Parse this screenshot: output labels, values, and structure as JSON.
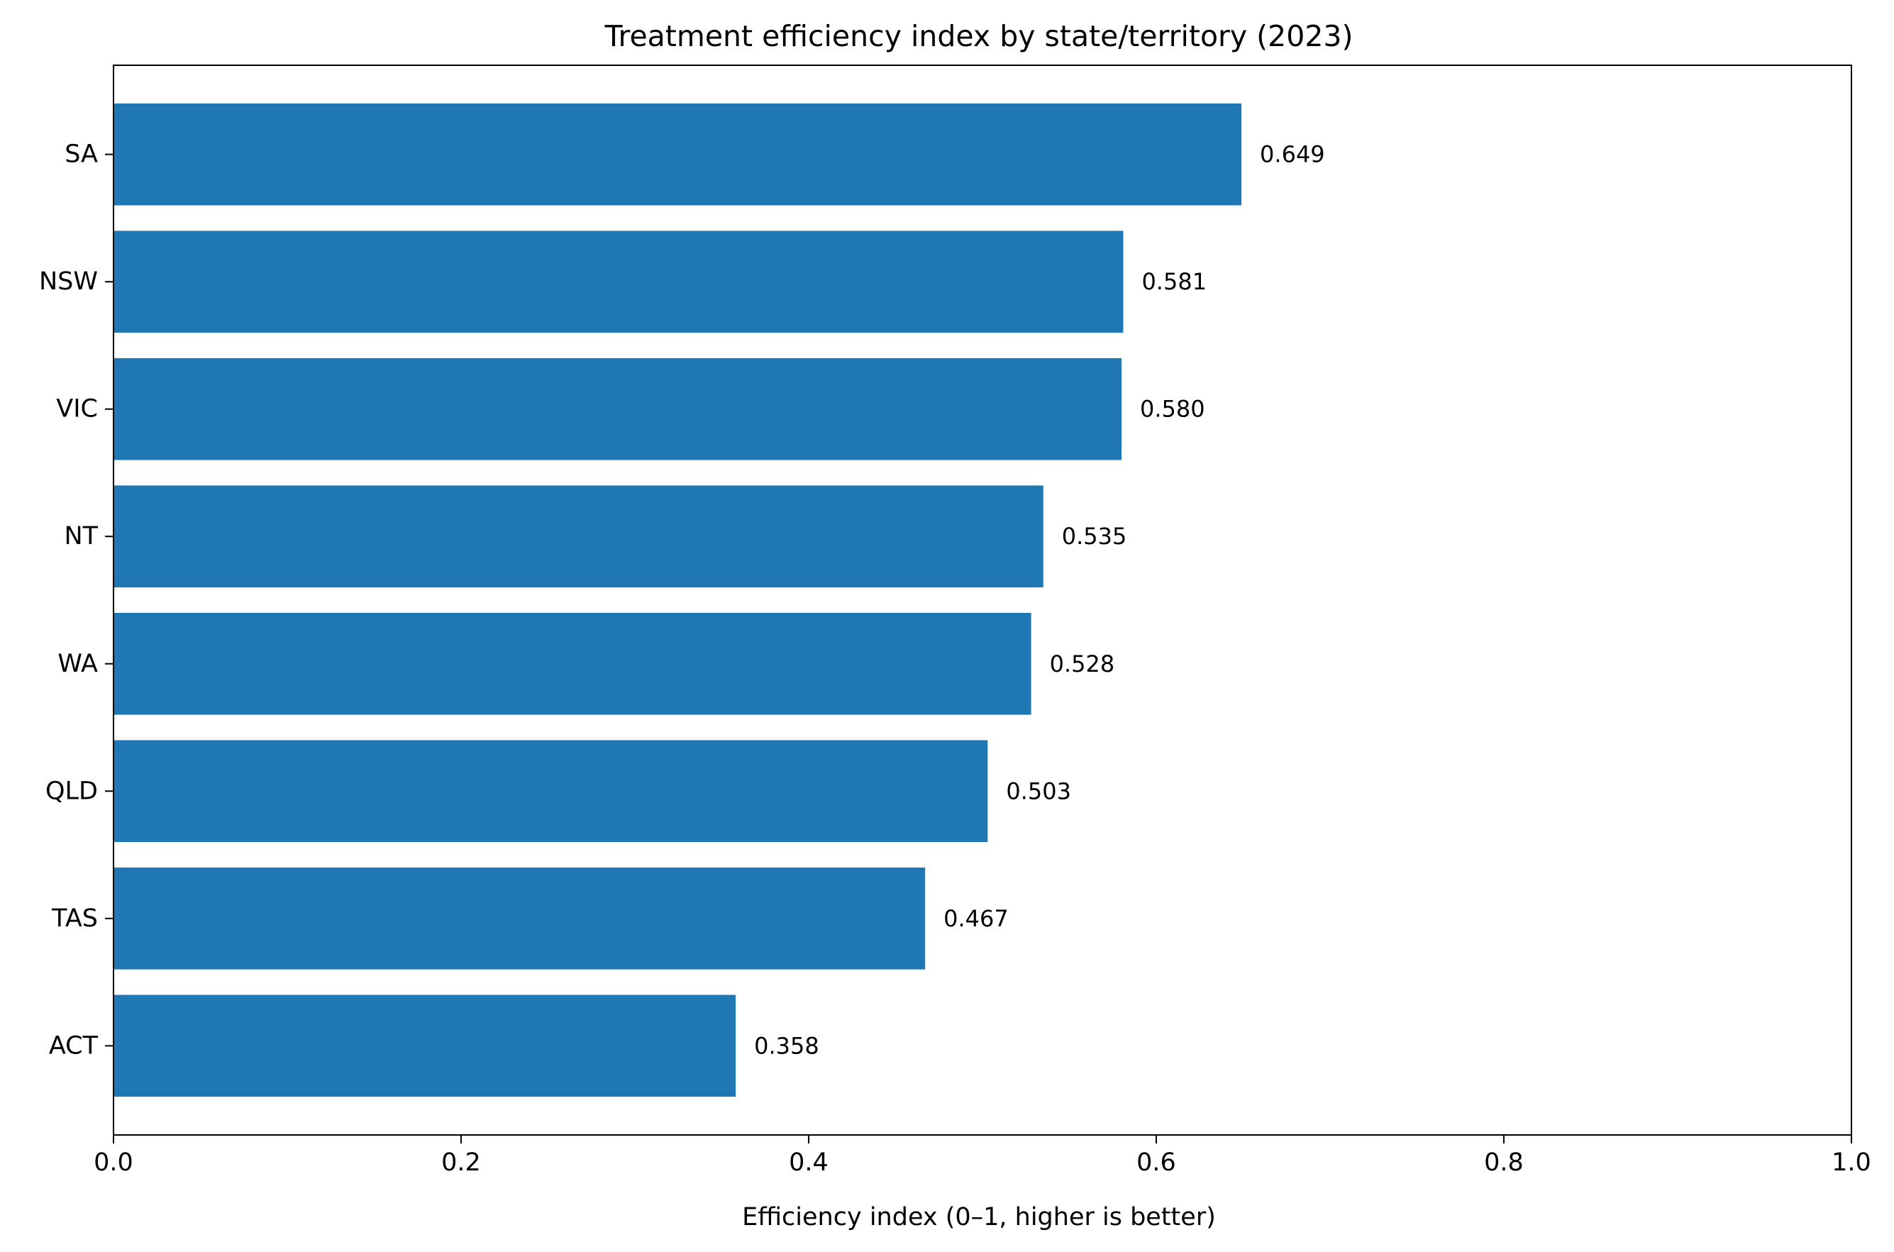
{
  "chart_data": {
    "type": "bar",
    "orientation": "horizontal",
    "title": "Treatment efficiency index by state/territory (2023)",
    "xlabel": "Efficiency index (0–1, higher is better)",
    "ylabel": "",
    "xlim": [
      0,
      1
    ],
    "xticks": [
      "0.0",
      "0.2",
      "0.4",
      "0.6",
      "0.8",
      "1.0"
    ],
    "categories": [
      "SA",
      "NSW",
      "VIC",
      "NT",
      "WA",
      "QLD",
      "TAS",
      "ACT"
    ],
    "values": [
      0.649,
      0.581,
      0.58,
      0.535,
      0.528,
      0.503,
      0.467,
      0.358
    ],
    "value_labels": [
      "0.649",
      "0.581",
      "0.580",
      "0.535",
      "0.528",
      "0.503",
      "0.467",
      "0.358"
    ],
    "grid": false,
    "bar_color": "#1f77b4"
  }
}
